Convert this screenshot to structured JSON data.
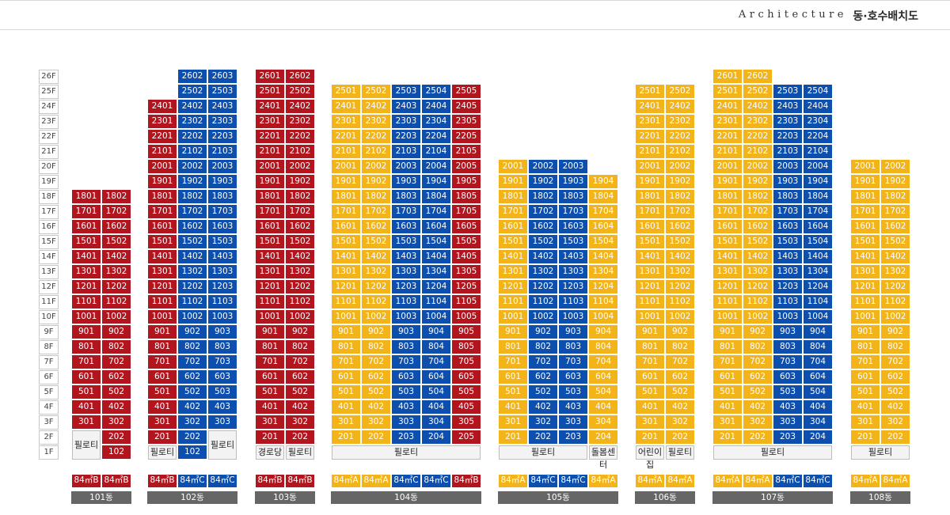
{
  "header": {
    "title_en": "Architecture",
    "title_ko": "동·호수배치도"
  },
  "floors": [
    "26F",
    "25F",
    "24F",
    "23F",
    "22F",
    "21F",
    "20F",
    "19F",
    "18F",
    "17F",
    "16F",
    "15F",
    "14F",
    "13F",
    "12F",
    "11F",
    "10F",
    "9F",
    "8F",
    "7F",
    "6F",
    "5F",
    "4F",
    "3F",
    "2F",
    "1F"
  ],
  "colors": {
    "84B": "#b3151e",
    "84C": "#0c4fae",
    "84A": "#f3b41a"
  },
  "buildings": [
    {
      "name": "101동",
      "lines": [
        {
          "line": "01",
          "type": "84㎡B",
          "top": 18,
          "bottom": 3
        },
        {
          "line": "02",
          "type": "84㎡B",
          "top": 18,
          "bottom": 1
        }
      ],
      "piloti": [
        {
          "label": "필로티",
          "cols": [
            0
          ],
          "floors": [
            2,
            1
          ]
        }
      ]
    },
    {
      "name": "102동",
      "lines": [
        {
          "line": "01",
          "type": "84㎡B",
          "top": 24,
          "bottom": 2
        },
        {
          "line": "02",
          "type": "84㎡C",
          "top": 26,
          "bottom": 1
        },
        {
          "line": "03",
          "type": "84㎡C",
          "top": 26,
          "bottom": 3
        }
      ],
      "piloti": [
        {
          "label": "필로티",
          "cols": [
            0
          ],
          "floors": [
            1
          ]
        },
        {
          "label": "필로티",
          "cols": [
            2
          ],
          "floors": [
            2,
            1
          ]
        }
      ]
    },
    {
      "name": "103동",
      "lines": [
        {
          "line": "01",
          "type": "84㎡B",
          "top": 26,
          "bottom": 2
        },
        {
          "line": "02",
          "type": "84㎡B",
          "top": 26,
          "bottom": 2
        }
      ],
      "piloti": [
        {
          "label": "경로당",
          "cols": [
            0
          ],
          "floors": [
            1
          ]
        },
        {
          "label": "필로티",
          "cols": [
            1
          ],
          "floors": [
            1
          ]
        }
      ]
    },
    {
      "name": "104동",
      "lines": [
        {
          "line": "01",
          "type": "84㎡A",
          "top": 25,
          "bottom": 2
        },
        {
          "line": "02",
          "type": "84㎡A",
          "top": 25,
          "bottom": 2
        },
        {
          "line": "03",
          "type": "84㎡C",
          "top": 25,
          "bottom": 2
        },
        {
          "line": "04",
          "type": "84㎡C",
          "top": 25,
          "bottom": 2
        },
        {
          "line": "05",
          "type": "84㎡B",
          "top": 25,
          "bottom": 2
        }
      ],
      "piloti": [
        {
          "label": "필로티",
          "cols": [
            0,
            1,
            2,
            3,
            4
          ],
          "floors": [
            1
          ]
        }
      ]
    },
    {
      "name": "105동",
      "lines": [
        {
          "line": "01",
          "type": "84㎡A",
          "top": 20,
          "bottom": 2
        },
        {
          "line": "02",
          "type": "84㎡C",
          "top": 20,
          "bottom": 2
        },
        {
          "line": "03",
          "type": "84㎡C",
          "top": 20,
          "bottom": 2
        },
        {
          "line": "04",
          "type": "84㎡A",
          "top": 19,
          "bottom": 2
        }
      ],
      "piloti": [
        {
          "label": "필로티",
          "cols": [
            0,
            1,
            2
          ],
          "floors": [
            1
          ]
        },
        {
          "label": "돌봄센터",
          "cols": [
            3
          ],
          "floors": [
            1
          ]
        }
      ]
    },
    {
      "name": "106동",
      "lines": [
        {
          "line": "01",
          "type": "84㎡A",
          "top": 25,
          "bottom": 2
        },
        {
          "line": "02",
          "type": "84㎡A",
          "top": 25,
          "bottom": 2
        }
      ],
      "piloti": [
        {
          "label": "어린이집",
          "cols": [
            0
          ],
          "floors": [
            1
          ]
        },
        {
          "label": "필로티",
          "cols": [
            1
          ],
          "floors": [
            1
          ]
        }
      ]
    },
    {
      "name": "107동",
      "lines": [
        {
          "line": "01",
          "type": "84㎡A",
          "top": 26,
          "bottom": 2
        },
        {
          "line": "02",
          "type": "84㎡A",
          "top": 26,
          "bottom": 2
        },
        {
          "line": "03",
          "type": "84㎡C",
          "top": 25,
          "bottom": 2
        },
        {
          "line": "04",
          "type": "84㎡C",
          "top": 25,
          "bottom": 2
        }
      ],
      "piloti": [
        {
          "label": "필로티",
          "cols": [
            0,
            1,
            2,
            3
          ],
          "floors": [
            1
          ]
        }
      ]
    },
    {
      "name": "108동",
      "lines": [
        {
          "line": "01",
          "type": "84㎡A",
          "top": 20,
          "bottom": 2
        },
        {
          "line": "02",
          "type": "84㎡A",
          "top": 20,
          "bottom": 2
        }
      ],
      "piloti": [
        {
          "label": "필로티",
          "cols": [
            0,
            1
          ],
          "floors": [
            1
          ]
        }
      ]
    }
  ]
}
